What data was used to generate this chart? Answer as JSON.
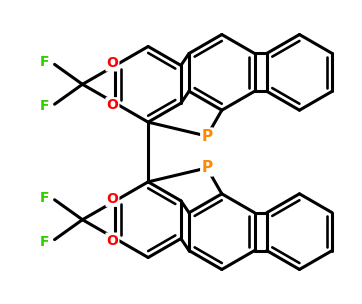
{
  "bg_color": "#ffffff",
  "bond_color": "#000000",
  "bond_lw": 2.2,
  "atom_colors": {
    "O": "#ff0000",
    "F": "#33cc00",
    "P": "#ff8800",
    "C": "#000000"
  },
  "figsize": [
    3.62,
    3.04
  ],
  "dpi": 100
}
